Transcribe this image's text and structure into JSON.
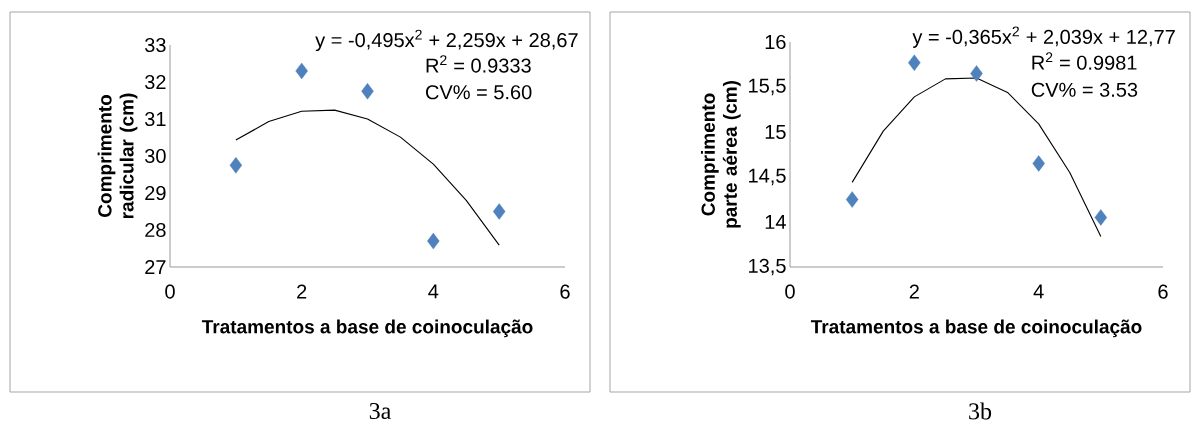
{
  "chart_data": [
    {
      "type": "scatter",
      "xlabel": "Tratamentos a base de coinoculação",
      "ylabel": "Comprimento radicular (cm)",
      "annotations": [
        "y = -0,495x$^{2}$ + 2,259x + 28,67",
        "R$^{2}$ = 0.9333",
        "CV% = 5.60",
        "3a"
      ],
      "xlim": [
        0,
        6
      ],
      "xticks": [
        0,
        2,
        4,
        6
      ],
      "ylim": [
        27,
        33
      ],
      "yticks": [
        27,
        28,
        29,
        30,
        31,
        32,
        33
      ],
      "grid": false,
      "series": [
        {
          "color": "#4f81bd",
          "marker": "diamond",
          "x": [
            1,
            2,
            3,
            4,
            5
          ],
          "values": [
            29.75,
            32.3,
            31.75,
            27.7,
            28.5
          ]
        },
        {
          "type": "line",
          "color": "#000000",
          "marker": "none",
          "x": [
            1,
            1.5,
            2,
            2.5,
            3,
            3.5,
            4,
            4.5,
            5
          ],
          "values": [
            30.43,
            30.93,
            31.21,
            31.24,
            31.0,
            30.51,
            29.78,
            28.8,
            27.59
          ]
        }
      ]
    },
    {
      "type": "scatter",
      "xlabel": "Tratamentos a base de coinoculação",
      "ylabel": "Comprimento parte aérea (cm)",
      "annotations": [
        "y = -0,365x$^{2}$ + 2,039x + 12,77",
        "R$^{2}$ = 0.9981",
        "CV% = 3.53",
        "3b"
      ],
      "xlim": [
        0,
        6
      ],
      "xticks": [
        0,
        2,
        4,
        6
      ],
      "ylim": [
        13.5,
        16
      ],
      "yticks": [
        {
          "value": 13.5,
          "label": "13,5"
        },
        14,
        {
          "value": 14.5,
          "label": "14,5"
        },
        15,
        {
          "value": 15.5,
          "label": "15,5"
        },
        16
      ],
      "grid": false,
      "series": [
        {
          "color": "#4f81bd",
          "marker": "diamond",
          "x": [
            1,
            2,
            3,
            4,
            5
          ],
          "values": [
            14.25,
            15.77,
            15.65,
            14.65,
            14.05
          ]
        },
        {
          "type": "line",
          "color": "#000000",
          "marker": "none",
          "x": [
            1,
            1.5,
            2,
            2.5,
            3,
            3.5,
            4,
            4.5,
            5
          ],
          "values": [
            14.44,
            15.01,
            15.39,
            15.59,
            15.6,
            15.44,
            15.09,
            14.55,
            13.84
          ]
        }
      ]
    }
  ]
}
